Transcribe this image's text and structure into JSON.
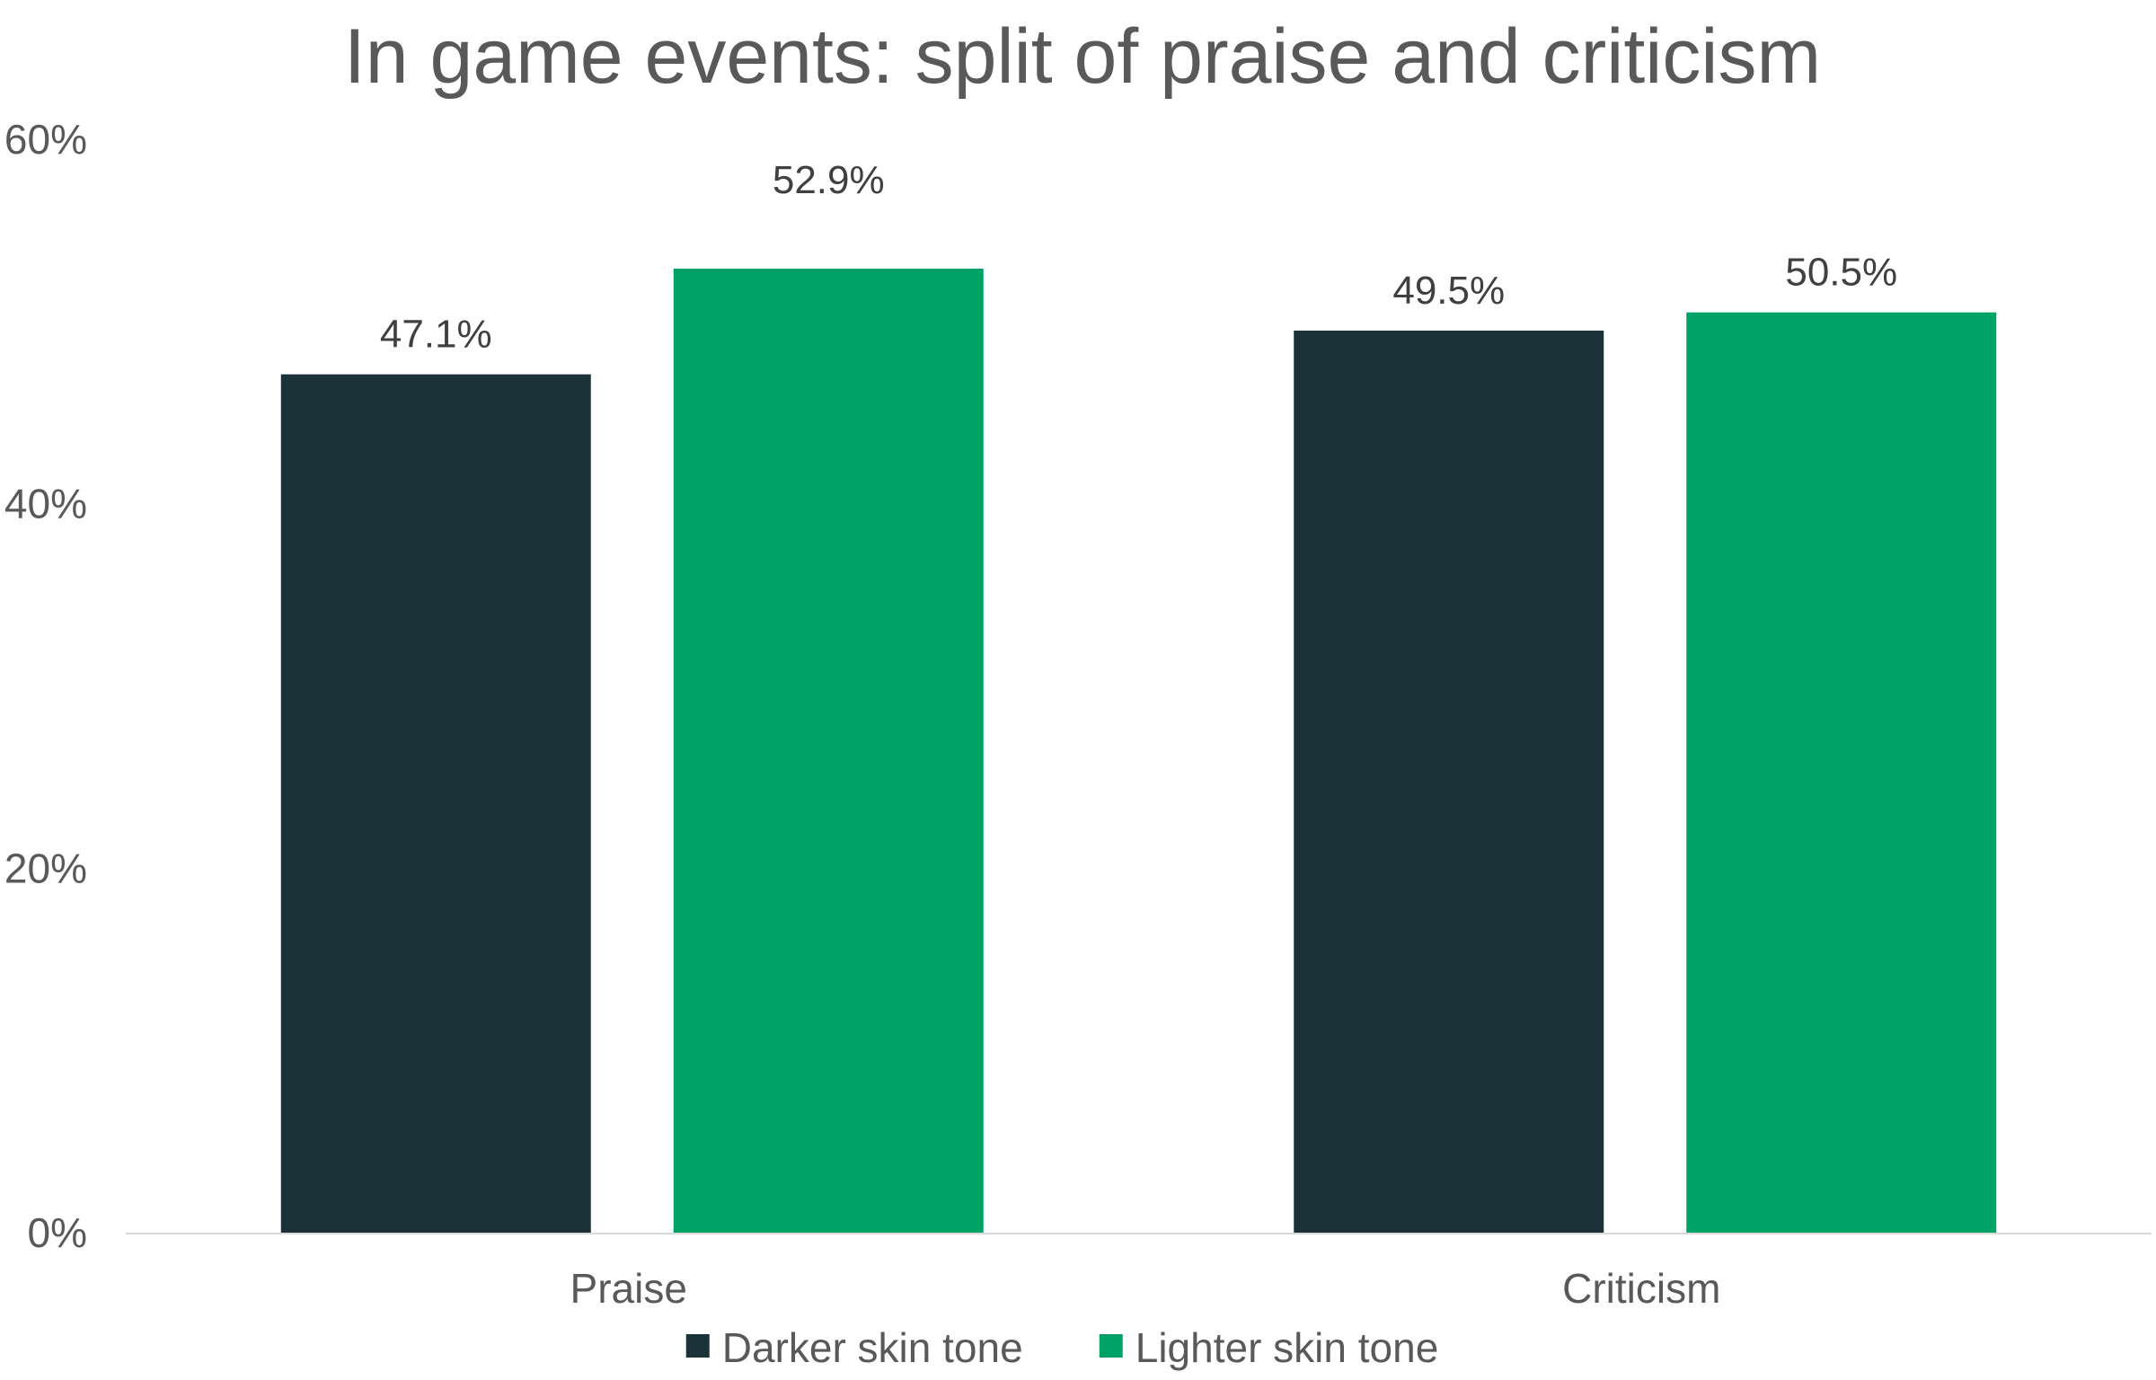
{
  "chart_data": {
    "type": "bar",
    "title": "In game events: split of praise and criticism",
    "xlabel": "",
    "ylabel": "",
    "categories": [
      "Praise",
      "Criticism"
    ],
    "series": [
      {
        "name": "Darker skin tone",
        "color": "#1c3239",
        "values": [
          47.1,
          49.5
        ],
        "labels": [
          "47.1%",
          "49.5%"
        ]
      },
      {
        "name": "Lighter skin tone",
        "color": "#00a367",
        "values": [
          52.9,
          50.5
        ],
        "labels": [
          "52.9%",
          "50.5%"
        ]
      }
    ],
    "ylim": [
      0,
      60
    ],
    "yticks": [
      0,
      20,
      40,
      60
    ],
    "ytick_labels": [
      "0%",
      "20%",
      "40%",
      "60%"
    ],
    "grid": false,
    "legend_position": "bottom"
  }
}
